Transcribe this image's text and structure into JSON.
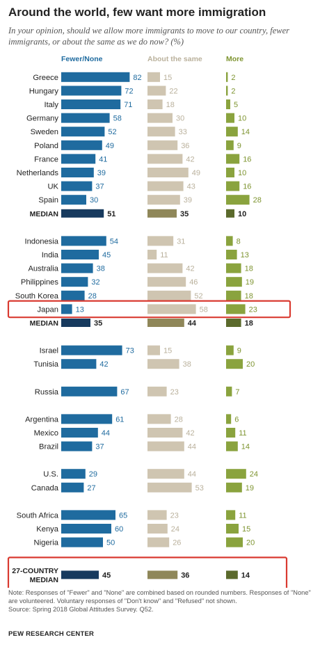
{
  "title": "Around the world, few want more immigration",
  "subtitle": "In your opinion, should we allow more immigrants to move to our country, fewer immigrants, or about the same as we do now? (%)",
  "colors": {
    "fewer": "#1f6b9f",
    "fewer_median": "#173a5e",
    "same": "#cfc5b1",
    "same_median": "#8f8759",
    "more": "#8aa33e",
    "more_median": "#5b6a2c",
    "fewer_text": "#1f6b9f",
    "same_text": "#bab19c",
    "more_text": "#7e9430",
    "highlight": "#d93a30"
  },
  "chart_data": {
    "type": "bar",
    "subtype": "horizontal grouped (three columns)",
    "series": [
      {
        "name": "Fewer/None"
      },
      {
        "name": "About the same"
      },
      {
        "name": "More"
      }
    ],
    "groups": [
      {
        "rows": [
          {
            "label": "Greece",
            "values": [
              82,
              15,
              2
            ]
          },
          {
            "label": "Hungary",
            "values": [
              72,
              22,
              2
            ]
          },
          {
            "label": "Italy",
            "values": [
              71,
              18,
              5
            ]
          },
          {
            "label": "Germany",
            "values": [
              58,
              30,
              10
            ]
          },
          {
            "label": "Sweden",
            "values": [
              52,
              33,
              14
            ]
          },
          {
            "label": "Poland",
            "values": [
              49,
              36,
              9
            ]
          },
          {
            "label": "France",
            "values": [
              41,
              42,
              16
            ]
          },
          {
            "label": "Netherlands",
            "values": [
              39,
              49,
              10
            ]
          },
          {
            "label": "UK",
            "values": [
              37,
              43,
              16
            ]
          },
          {
            "label": "Spain",
            "values": [
              30,
              39,
              28
            ]
          },
          {
            "label": "MEDIAN",
            "values": [
              51,
              35,
              10
            ],
            "median": true
          }
        ]
      },
      {
        "rows": [
          {
            "label": "Indonesia",
            "values": [
              54,
              31,
              8
            ]
          },
          {
            "label": "India",
            "values": [
              45,
              11,
              13
            ]
          },
          {
            "label": "Australia",
            "values": [
              38,
              42,
              18
            ]
          },
          {
            "label": "Philippines",
            "values": [
              32,
              46,
              19
            ]
          },
          {
            "label": "South Korea",
            "values": [
              28,
              52,
              18
            ]
          },
          {
            "label": "Japan",
            "values": [
              13,
              58,
              23
            ],
            "highlight": true
          },
          {
            "label": "MEDIAN",
            "values": [
              35,
              44,
              18
            ],
            "median": true
          }
        ]
      },
      {
        "rows": [
          {
            "label": "Israel",
            "values": [
              73,
              15,
              9
            ]
          },
          {
            "label": "Tunisia",
            "values": [
              42,
              38,
              20
            ]
          }
        ]
      },
      {
        "rows": [
          {
            "label": "Russia",
            "values": [
              67,
              23,
              7
            ]
          }
        ]
      },
      {
        "rows": [
          {
            "label": "Argentina",
            "values": [
              61,
              28,
              6
            ]
          },
          {
            "label": "Mexico",
            "values": [
              44,
              42,
              11
            ]
          },
          {
            "label": "Brazil",
            "values": [
              37,
              44,
              14
            ]
          }
        ]
      },
      {
        "rows": [
          {
            "label": "U.S.",
            "values": [
              29,
              44,
              24
            ]
          },
          {
            "label": "Canada",
            "values": [
              27,
              53,
              19
            ]
          }
        ]
      },
      {
        "rows": [
          {
            "label": "South Africa",
            "values": [
              65,
              23,
              11
            ]
          },
          {
            "label": "Kenya",
            "values": [
              60,
              24,
              15
            ]
          },
          {
            "label": "Nigeria",
            "values": [
              50,
              26,
              20
            ]
          }
        ]
      },
      {
        "rows": [
          {
            "label": "27-COUNTRY\nMEDIAN",
            "values": [
              45,
              36,
              14
            ],
            "median": true,
            "highlight": true
          }
        ]
      }
    ]
  },
  "notes": "Note: Responses of \"Fewer\" and \"None\" are combined based on rounded numbers. Responses of \"None\" are volunteered. Voluntary responses of \"Don't know\" and \"Refused\" not shown.",
  "source": "Source: Spring 2018 Global Attitudes Survey. Q52.",
  "brand": "PEW RESEARCH CENTER"
}
